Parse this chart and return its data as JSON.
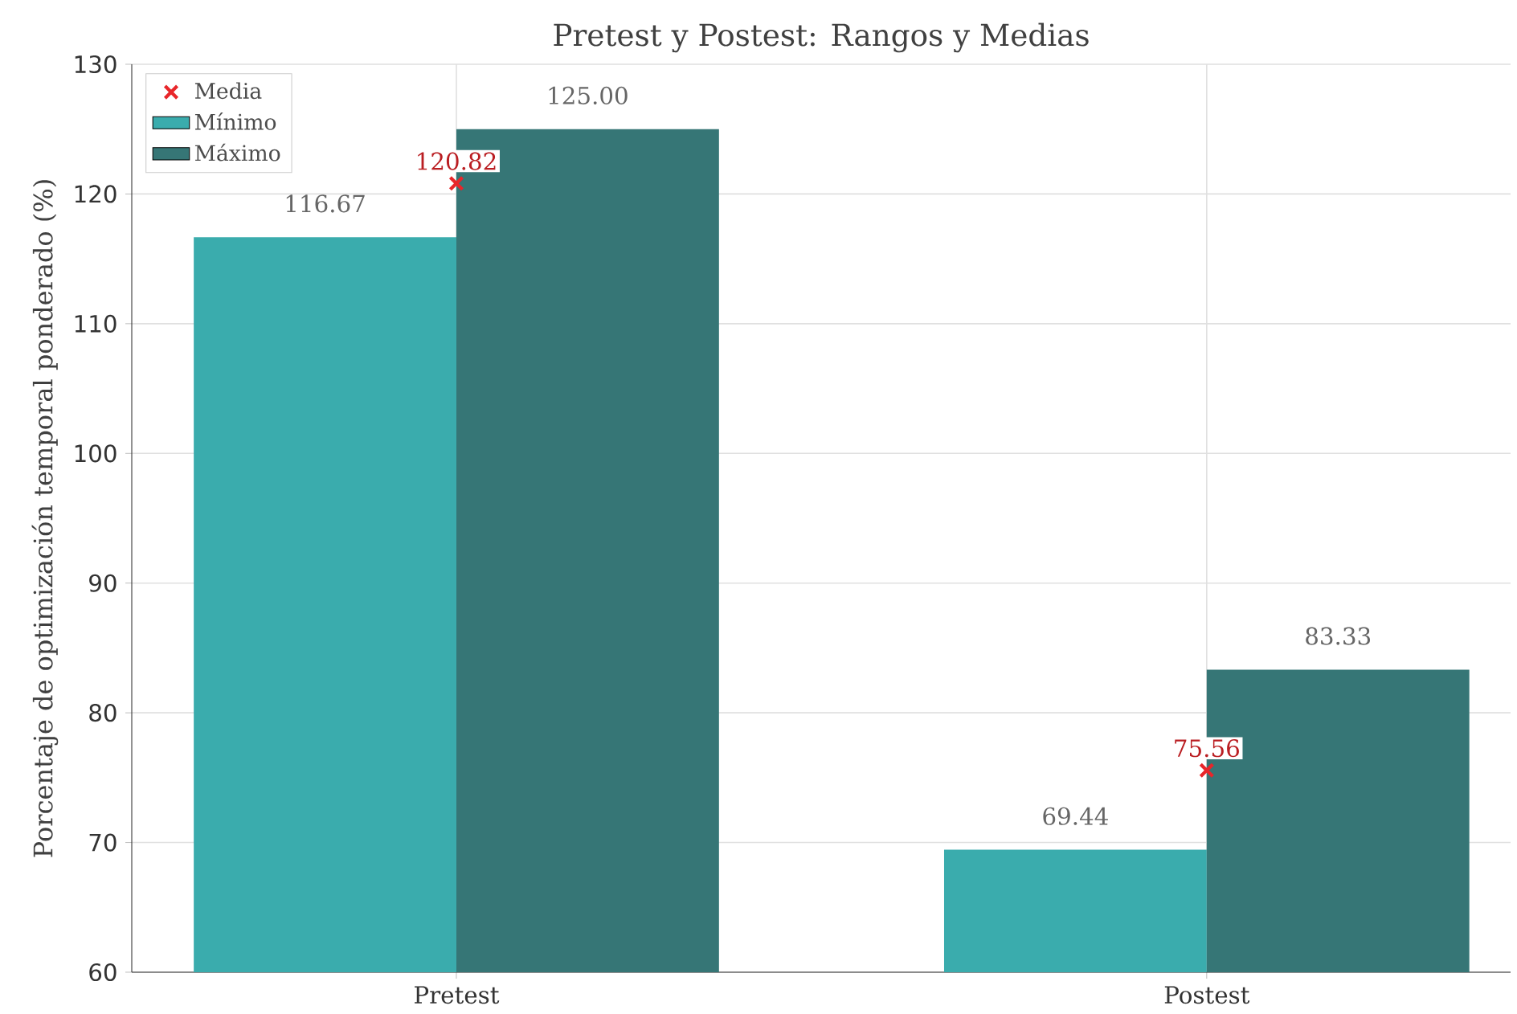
{
  "chart_data": {
    "type": "bar",
    "title": "Pretest y Postest: Rangos y Medias",
    "ylabel": "Porcentaje de optimización temporal ponderado (%)",
    "categories": [
      "Pretest",
      "Postest"
    ],
    "series": [
      {
        "name": "Media",
        "type": "scatter",
        "marker": "cross",
        "color": "#e8262a",
        "values": [
          120.82,
          75.56
        ],
        "value_labels": [
          "120.82",
          "75.56"
        ]
      },
      {
        "name": "Mínimo",
        "color": "#3aacad",
        "values": [
          116.67,
          69.44
        ],
        "value_labels": [
          "116.67",
          "69.44"
        ]
      },
      {
        "name": "Máximo",
        "color": "#367676",
        "values": [
          125.0,
          83.33
        ],
        "value_labels": [
          "125.00",
          "83.33"
        ]
      }
    ],
    "ylim": [
      60,
      130
    ],
    "yticks": [
      60,
      70,
      80,
      90,
      100,
      110,
      120,
      130
    ],
    "grid": true,
    "legend": "top left"
  }
}
